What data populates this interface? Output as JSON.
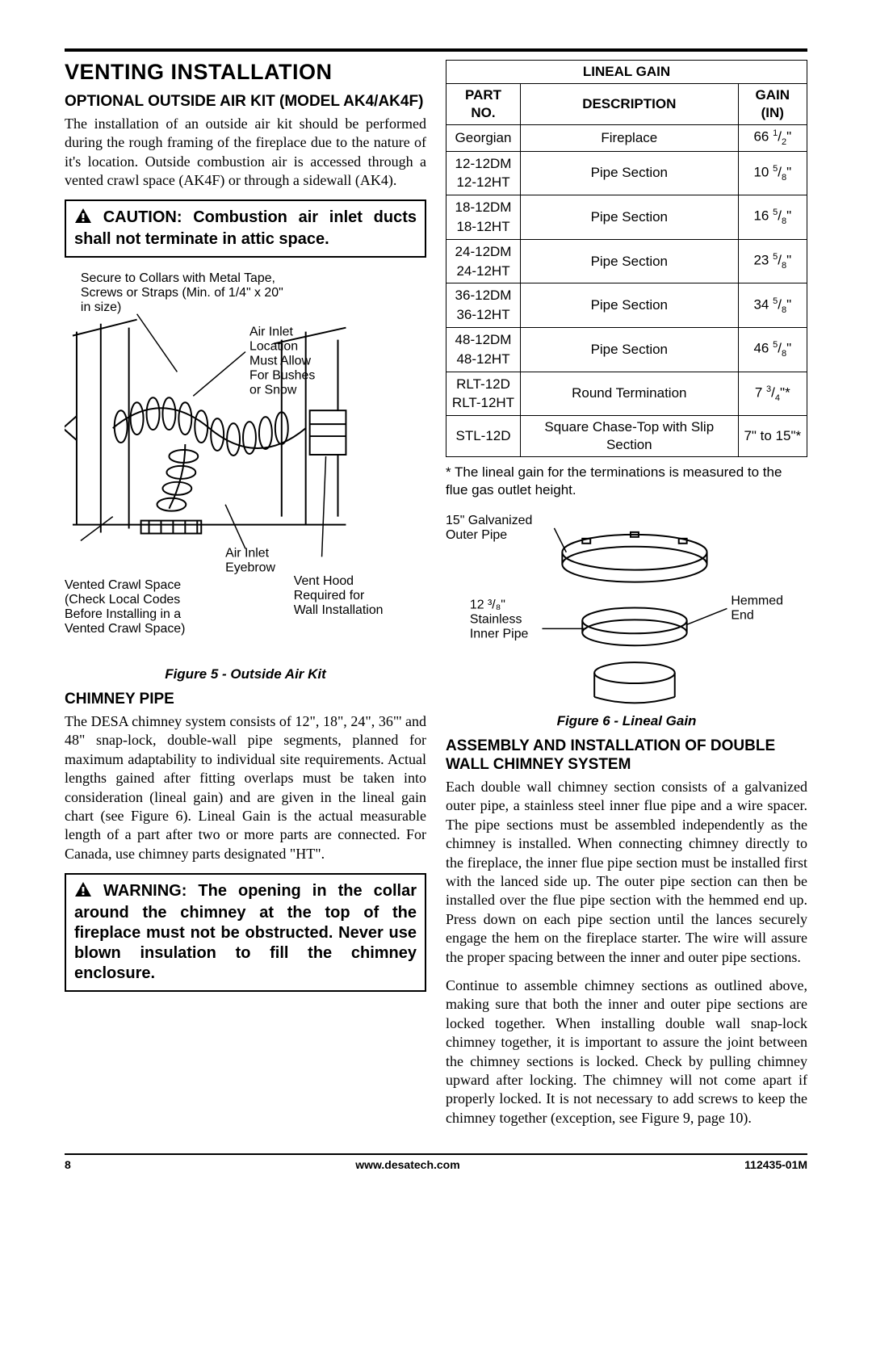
{
  "page": {
    "main_heading": "VENTING INSTALLATION",
    "footer_page": "8",
    "footer_url": "www.desatech.com",
    "footer_doc": "112435-01M"
  },
  "left": {
    "ak_heading": "OPTIONAL OUTSIDE AIR KIT (MODEL AK4/AK4F)",
    "ak_body": "The installation of an outside air kit should be performed during the rough framing of the fireplace due to the nature of it's location. Outside combustion air is accessed through a vented crawl space (AK4F) or through a sidewall (AK4).",
    "caution_text": "CAUTION: Combustion air inlet ducts shall not terminate in attic space.",
    "fig5_caption": "Figure 5 - Outside Air Kit",
    "fig5_labels": {
      "secure": "Secure to Collars with Metal Tape, Screws or Straps (Min. of 1/4\" x 20\" in size)",
      "inlet_loc": "Air Inlet Location Must Allow For Bushes or Snow",
      "eyebrow": "Air Inlet Eyebrow",
      "vent_hood": "Vent Hood Required for Wall Installation",
      "crawl": "Vented Crawl Space (Check Local Codes Before Installing in a Vented Crawl Space)"
    },
    "chimney_heading": "CHIMNEY PIPE",
    "chimney_body": "The DESA chimney system consists of 12\", 18\", 24\", 36\"' and 48\" snap-lock, double-wall pipe segments, planned for maximum adaptability to individual site requirements. Actual lengths gained after fitting overlaps must be taken into consideration (lineal gain) and are given in the lineal gain chart (see Figure 6). Lineal Gain is the actual measurable length of a part after two or more parts are connected. For Canada, use chimney parts designated \"HT\".",
    "warning_text": "WARNING: The opening in the collar around the chimney at the top of the fireplace must not be obstructed. Never use blown insulation to fill the chimney enclosure."
  },
  "right": {
    "table": {
      "title": "LINEAL GAIN",
      "headers": [
        "PART NO.",
        "DESCRIPTION",
        "GAIN (IN)"
      ],
      "rows": [
        {
          "part": "Georgian",
          "desc": "Fireplace",
          "gain_whole": "66",
          "gain_num": "1",
          "gain_den": "2",
          "gain_suffix": "\""
        },
        {
          "part": "12-12DM\n12-12HT",
          "desc": "Pipe Section",
          "gain_whole": "10",
          "gain_num": "5",
          "gain_den": "8",
          "gain_suffix": "\""
        },
        {
          "part": "18-12DM\n18-12HT",
          "desc": "Pipe Section",
          "gain_whole": "16",
          "gain_num": "5",
          "gain_den": "8",
          "gain_suffix": "\""
        },
        {
          "part": "24-12DM\n24-12HT",
          "desc": "Pipe Section",
          "gain_whole": "23",
          "gain_num": "5",
          "gain_den": "8",
          "gain_suffix": "\""
        },
        {
          "part": "36-12DM\n36-12HT",
          "desc": "Pipe Section",
          "gain_whole": "34",
          "gain_num": "5",
          "gain_den": "8",
          "gain_suffix": "\""
        },
        {
          "part": "48-12DM\n48-12HT",
          "desc": "Pipe Section",
          "gain_whole": "46",
          "gain_num": "5",
          "gain_den": "8",
          "gain_suffix": "\""
        },
        {
          "part": "RLT-12D\nRLT-12HT",
          "desc": "Round Termination",
          "gain_whole": "7",
          "gain_num": "3",
          "gain_den": "4",
          "gain_suffix": "\"*"
        },
        {
          "part": "STL-12D",
          "desc": "Square Chase-Top with Slip Section",
          "gain_plain": "7\" to 15\"*"
        }
      ]
    },
    "footnote": "* The lineal gain for the terminations is measured to the flue gas outlet height.",
    "fig6_caption": "Figure 6 - Lineal Gain",
    "fig6_labels": {
      "outer_pipe": "15\" Galvanized Outer Pipe",
      "inner_pipe": "12 ³/₈\" Stainless Inner Pipe",
      "hemmed": "Hemmed End"
    },
    "assembly_heading": "ASSEMBLY AND INSTALLATION OF DOUBLE WALL CHIMNEY SYSTEM",
    "assembly_body1": "Each double wall chimney section consists of a galvanized outer pipe, a stainless steel inner flue pipe and a wire spacer. The pipe sections must be assembled independently as the chimney is installed. When connecting chimney directly to the fireplace, the inner flue pipe section must be installed first with the lanced side up. The outer pipe section can then be installed over the flue pipe section with the hemmed end up. Press down on each pipe section until the lances securely engage the hem on the fireplace starter. The wire will assure the proper spacing between the inner and outer pipe sections.",
    "assembly_body2": "Continue to assemble chimney sections as outlined above, making sure that both the inner and outer pipe sections are locked together. When installing double wall snap-lock chimney together, it is important to assure the joint between the chimney sections is locked. Check by pulling chimney upward after locking. The chimney will not come apart if properly locked. It is not necessary to add screws to keep the chimney together (exception, see Figure 9, page 10)."
  },
  "style": {
    "text_color": "#000000",
    "background_color": "#ffffff",
    "warn_icon_fill": "#000000"
  }
}
